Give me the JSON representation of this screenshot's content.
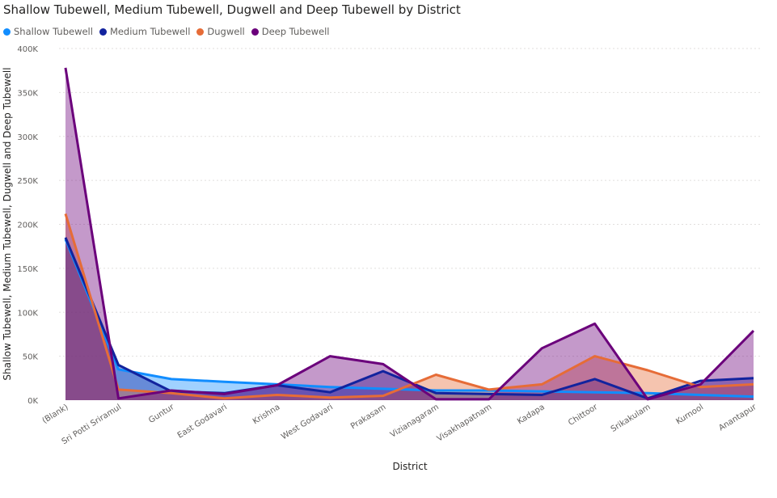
{
  "chart_data": {
    "type": "area",
    "title": "Shallow Tubewell, Medium Tubewell, Dugwell and Deep Tubewell by District",
    "xlabel": "District",
    "ylabel": "Shallow Tubewell, Medium Tubewell, Dugwell and Deep Tubewell",
    "ylim": [
      0,
      400000
    ],
    "y_ticks": [
      "0K",
      "50K",
      "100K",
      "150K",
      "200K",
      "250K",
      "300K",
      "350K",
      "400K"
    ],
    "grid": true,
    "legend_position": "top-left",
    "categories": [
      "(Blank)",
      "Sri Potti Sriramul",
      "Guntur",
      "East Godavari",
      "Krishna",
      "West Godavari",
      "Prakasam",
      "Vizianagaram",
      "Visakhapatnam",
      "Kadapa",
      "Chittoor",
      "Srikakulam",
      "Kurnool",
      "Anantapur"
    ],
    "series": [
      {
        "name": "Shallow Tubewell",
        "color": "#118dff",
        "values": [
          183000,
          35000,
          24000,
          21000,
          18000,
          15000,
          13000,
          11000,
          11000,
          10000,
          9000,
          8000,
          6000,
          4000
        ]
      },
      {
        "name": "Medium Tubewell",
        "color": "#12239e",
        "values": [
          185000,
          40000,
          10000,
          8000,
          17000,
          9000,
          33000,
          8000,
          7000,
          6000,
          24000,
          2000,
          22000,
          25000
        ]
      },
      {
        "name": "Dugwell",
        "color": "#e66c37",
        "values": [
          212000,
          12000,
          8000,
          2000,
          6000,
          3000,
          5000,
          29000,
          12000,
          18000,
          50000,
          34000,
          15000,
          18000
        ]
      },
      {
        "name": "Deep Tubewell",
        "color": "#6b007b",
        "values": [
          378000,
          2000,
          11000,
          7000,
          17000,
          50000,
          41000,
          1000,
          1000,
          59000,
          87000,
          1000,
          18000,
          79000
        ]
      }
    ]
  }
}
